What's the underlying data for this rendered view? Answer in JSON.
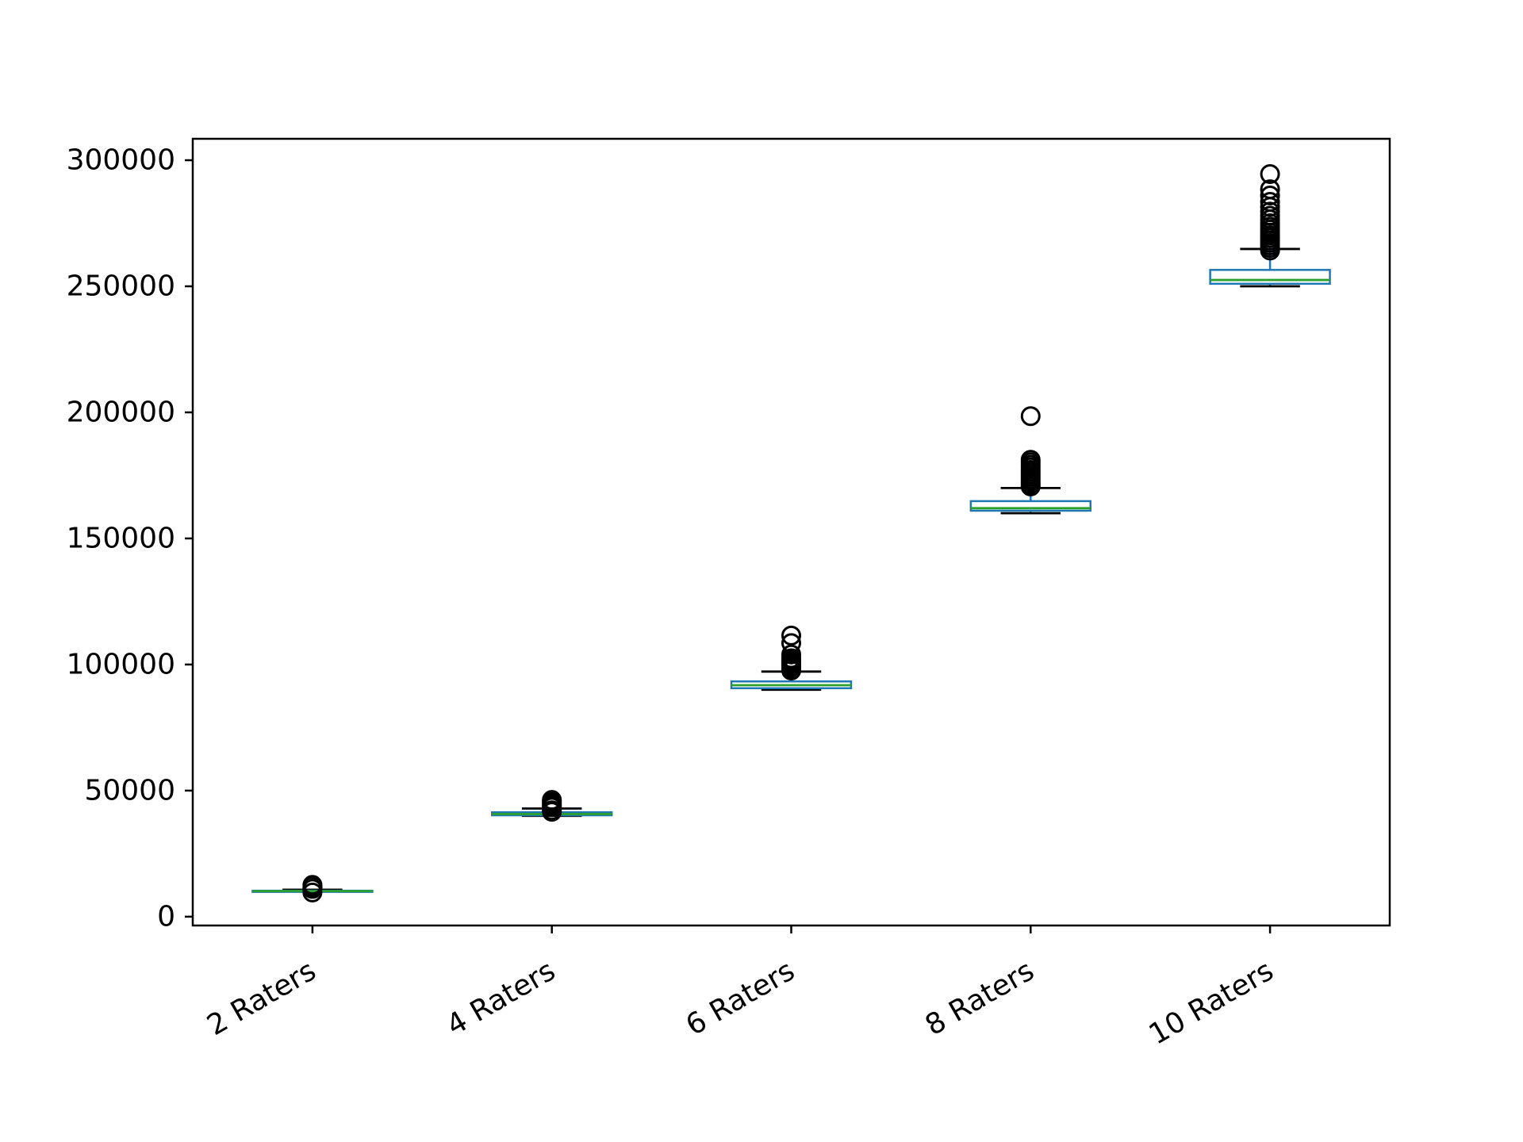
{
  "chart_data": {
    "type": "box",
    "title": "",
    "xlabel": "",
    "ylabel": "",
    "ylim": [
      -3500,
      308500
    ],
    "yticks": [
      0,
      50000,
      100000,
      150000,
      200000,
      250000,
      300000
    ],
    "ytick_labels": [
      "0",
      "50000",
      "100000",
      "150000",
      "200000",
      "250000",
      "300000"
    ],
    "categories": [
      "2 Raters",
      "4 Raters",
      "6 Raters",
      "8 Raters",
      "10 Raters"
    ],
    "grid": false,
    "colors": {
      "box": "#1f77b4",
      "median": "#2ca02c",
      "whisker": "#000000",
      "flier": "#000000"
    },
    "boxes": [
      {
        "category": "2 Raters",
        "whislo": 10000,
        "q1": 10050,
        "median": 10150,
        "q3": 10300,
        "whishi": 10700,
        "fliers": [
          11000,
          11400,
          11800,
          12200,
          12600,
          9600
        ]
      },
      {
        "category": "4 Raters",
        "whislo": 40000,
        "q1": 40200,
        "median": 40700,
        "q3": 41400,
        "whishi": 42900,
        "fliers": [
          43400,
          44000,
          44600,
          45200,
          45900,
          46300,
          42200,
          41600
        ]
      },
      {
        "category": "6 Raters",
        "whislo": 90000,
        "q1": 90600,
        "median": 91800,
        "q3": 93300,
        "whishi": 97200,
        "fliers": [
          97600,
          98200,
          98900,
          99600,
          100300,
          101000,
          101700,
          102500,
          104000,
          108500,
          111500
        ]
      },
      {
        "category": "8 Raters",
        "whislo": 160000,
        "q1": 161000,
        "median": 162000,
        "q3": 164800,
        "whishi": 170000,
        "fliers": [
          170600,
          171300,
          172000,
          172800,
          173600,
          174500,
          175400,
          176300,
          177200,
          178200,
          179200,
          180200,
          181200,
          198500
        ]
      },
      {
        "category": "10 Raters",
        "whislo": 250000,
        "q1": 251000,
        "median": 252500,
        "q3": 256500,
        "whishi": 264800,
        "fliers": [
          264200,
          265200,
          266200,
          267200,
          268200,
          269200,
          270200,
          271300,
          272500,
          273700,
          275000,
          276500,
          278000,
          279600,
          281500,
          283500,
          286000,
          288500,
          294500
        ]
      }
    ]
  }
}
